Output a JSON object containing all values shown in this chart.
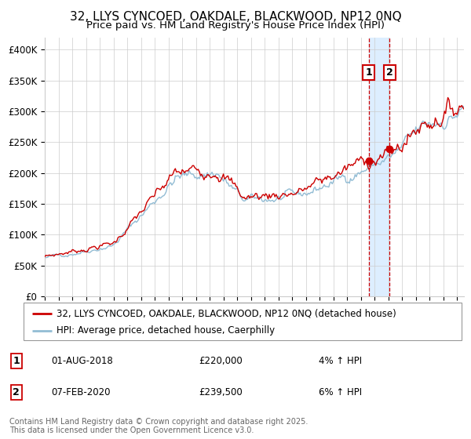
{
  "title_line1": "32, LLYS CYNCOED, OAKDALE, BLACKWOOD, NP12 0NQ",
  "title_line2": "Price paid vs. HM Land Registry's House Price Index (HPI)",
  "legend_label1": "32, LLYS CYNCOED, OAKDALE, BLACKWOOD, NP12 0NQ (detached house)",
  "legend_label2": "HPI: Average price, detached house, Caerphilly",
  "transaction1_date": "01-AUG-2018",
  "transaction1_price": "£220,000",
  "transaction1_pct": "4% ↑ HPI",
  "transaction2_date": "07-FEB-2020",
  "transaction2_price": "£239,500",
  "transaction2_pct": "6% ↑ HPI",
  "transaction1_x": 2018.583,
  "transaction1_y": 220000,
  "transaction2_x": 2020.083,
  "transaction2_y": 239500,
  "vline1_x": 2018.583,
  "vline2_x": 2020.083,
  "xmin": 1995,
  "xmax": 2025.5,
  "ymin": 0,
  "ymax": 420000,
  "yticks": [
    0,
    50000,
    100000,
    150000,
    200000,
    250000,
    300000,
    350000,
    400000
  ],
  "color_red": "#cc0000",
  "color_blue": "#92bcd4",
  "color_vline": "#cc0000",
  "color_shade": "#ddeeff",
  "footer_text": "Contains HM Land Registry data © Crown copyright and database right 2025.\nThis data is licensed under the Open Government Licence v3.0."
}
